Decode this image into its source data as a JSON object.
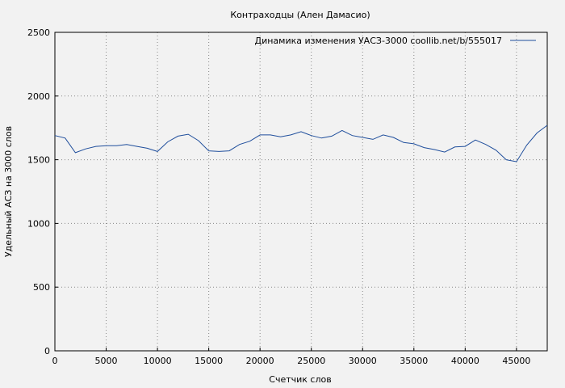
{
  "chart_data": {
    "type": "line",
    "title": "Контраходцы (Ален Дамасио)",
    "xlabel": "Счетчик слов",
    "ylabel": "Удельный АСЗ на 3000 слов",
    "xlim": [
      0,
      48000
    ],
    "ylim": [
      0,
      2500
    ],
    "x_ticks": [
      0,
      5000,
      10000,
      15000,
      20000,
      25000,
      30000,
      35000,
      40000,
      45000
    ],
    "y_ticks": [
      0,
      500,
      1000,
      1500,
      2000,
      2500
    ],
    "grid": true,
    "legend_position": "top-right",
    "series": [
      {
        "name": "Динамика изменения УАСЗ-3000  coollib.net/b/555017",
        "color": "#1f4e9c",
        "x": [
          0,
          1000,
          2000,
          3000,
          4000,
          5000,
          6000,
          7000,
          8000,
          9000,
          10000,
          11000,
          12000,
          13000,
          14000,
          15000,
          16000,
          17000,
          18000,
          19000,
          20000,
          21000,
          22000,
          23000,
          24000,
          25000,
          26000,
          27000,
          28000,
          29000,
          30000,
          31000,
          32000,
          33000,
          34000,
          35000,
          36000,
          37000,
          38000,
          39000,
          40000,
          41000,
          42000,
          43000,
          44000,
          45000,
          46000,
          47000,
          48000
        ],
        "y": [
          1690,
          1670,
          1555,
          1585,
          1605,
          1610,
          1610,
          1620,
          1605,
          1590,
          1565,
          1640,
          1685,
          1700,
          1650,
          1570,
          1565,
          1570,
          1620,
          1645,
          1695,
          1695,
          1680,
          1695,
          1720,
          1690,
          1670,
          1685,
          1730,
          1690,
          1675,
          1660,
          1695,
          1675,
          1635,
          1625,
          1595,
          1580,
          1560,
          1600,
          1605,
          1655,
          1620,
          1575,
          1500,
          1485,
          1615,
          1710,
          1770
        ]
      }
    ]
  }
}
